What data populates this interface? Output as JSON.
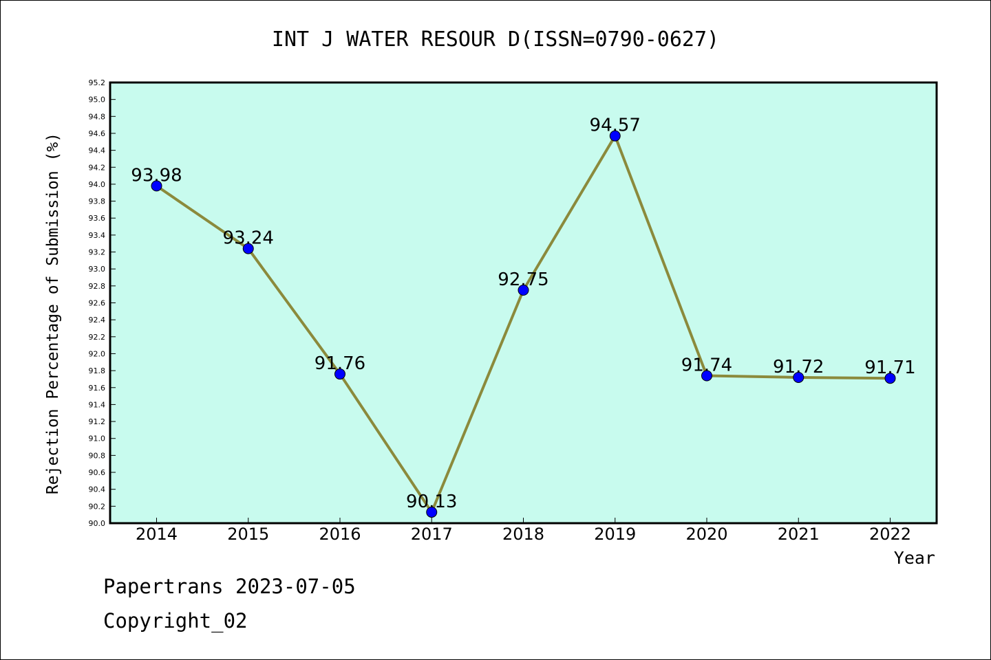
{
  "chart_data": {
    "type": "line",
    "title": "INT J WATER RESOUR D(ISSN=0790-0627)",
    "xlabel": "Year",
    "ylabel": "Rejection Percentage of Submission (%)",
    "categories": [
      "2014",
      "2015",
      "2016",
      "2017",
      "2018",
      "2019",
      "2020",
      "2021",
      "2022"
    ],
    "values": [
      93.98,
      93.24,
      91.76,
      90.13,
      92.75,
      94.57,
      91.74,
      91.72,
      91.71
    ],
    "data_labels": [
      "93.98",
      "93.24",
      "91.76",
      "90.13",
      "92.75",
      "94.57",
      "91.74",
      "91.72",
      "91.71"
    ],
    "ylim": [
      90.0,
      95.2
    ],
    "yticks": [
      "90.0",
      "90.2",
      "90.4",
      "90.6",
      "90.8",
      "91.0",
      "91.2",
      "91.4",
      "91.6",
      "91.8",
      "92.0",
      "92.2",
      "92.4",
      "92.6",
      "92.8",
      "93.0",
      "93.2",
      "93.4",
      "93.6",
      "93.8",
      "94.0",
      "94.2",
      "94.4",
      "94.6",
      "94.8",
      "95.0",
      "95.2"
    ],
    "grid": false,
    "colors": {
      "plot_background": "#c8fbee",
      "line": "#8b8a3c",
      "marker": "#0000ff"
    }
  },
  "footer": {
    "line1": "Papertrans 2023-07-05",
    "line2": "Copyright_02"
  }
}
